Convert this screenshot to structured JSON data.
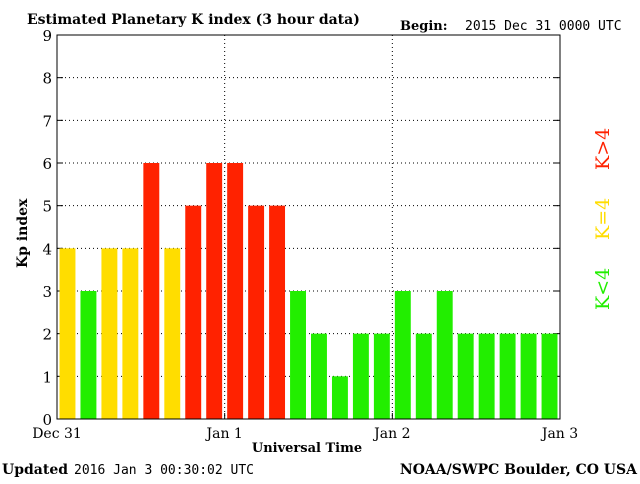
{
  "title": "Estimated Planetary K index (3 hour data)",
  "begin_label": "Begin:",
  "begin_value": "2015 Dec 31 0000 UTC",
  "updated_label": "Updated",
  "updated_value": "2016 Jan  3 00:30:02 UTC",
  "credit": "NOAA/SWPC Boulder, CO USA",
  "colors": {
    "low": "#22ee00",
    "mid": "#ffdd00",
    "high": "#ff2200",
    "grid": "#000000"
  },
  "legend": {
    "low": "K<4",
    "mid": "K=4",
    "high": "K>4"
  },
  "chart_data": {
    "type": "bar",
    "title": "Estimated Planetary K index (3 hour data)",
    "xlabel": "Universal Time",
    "ylabel": "Kp index",
    "ylim": [
      0,
      9
    ],
    "yticks": [
      "0",
      "1",
      "2",
      "3",
      "4",
      "5",
      "6",
      "7",
      "8",
      "9"
    ],
    "xticks": [
      "Dec 31",
      "Jan 1",
      "Jan 2",
      "Jan 3"
    ],
    "grid": true,
    "values": [
      4,
      3,
      4,
      4,
      6,
      4,
      5,
      6,
      6,
      5,
      5,
      3,
      2,
      1,
      2,
      2,
      3,
      2,
      3,
      2,
      2,
      2,
      2,
      2
    ]
  }
}
